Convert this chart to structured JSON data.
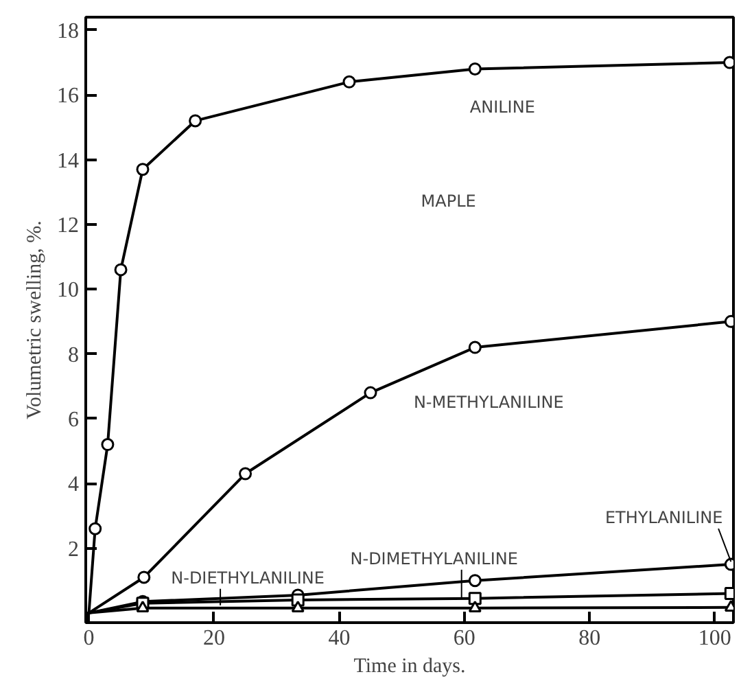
{
  "chart_data": {
    "type": "line",
    "xlabel": "Time in days.",
    "ylabel": "Volumetric swelling, %.",
    "annotations": [
      "MAPLE"
    ],
    "xlim": [
      -0.5,
      103
    ],
    "ylim": [
      -0.3,
      18.4
    ],
    "xticks": [
      0,
      20,
      40,
      60,
      80,
      100
    ],
    "yticks": [
      2,
      4,
      6,
      8,
      10,
      12,
      14,
      16,
      18
    ],
    "grid": false,
    "series": [
      {
        "name": "ANILINE",
        "color": "#000000",
        "marker": "circle",
        "x": [
          0,
          1,
          3,
          5.1,
          8.6,
          17,
          41.6,
          61.7,
          102.4
        ],
        "values": [
          0,
          2.6,
          5.2,
          10.6,
          13.7,
          15.2,
          16.4,
          16.8,
          17.0
        ]
      },
      {
        "name": "N-METHYLANILINE",
        "color": "#000000",
        "marker": "circle",
        "x": [
          0,
          8.8,
          25,
          45,
          61.7,
          102.6
        ],
        "values": [
          0,
          1.1,
          4.3,
          6.8,
          8.2,
          9.0
        ]
      },
      {
        "name": "ETHYLANILINE",
        "color": "#000000",
        "marker": "circle",
        "x": [
          0,
          8.6,
          33.4,
          61.7,
          102.6
        ],
        "values": [
          0,
          0.35,
          0.55,
          1.0,
          1.5
        ]
      },
      {
        "name": "N-DIMETHYLANILINE",
        "color": "#000000",
        "marker": "square",
        "x": [
          0,
          8.6,
          33.4,
          61.7,
          102.6
        ],
        "values": [
          0,
          0.3,
          0.4,
          0.45,
          0.6
        ]
      },
      {
        "name": "N-DIETHYLANILINE",
        "color": "#000000",
        "marker": "triangle",
        "x": [
          0,
          8.6,
          33.4,
          61.7,
          102.6
        ],
        "values": [
          0,
          0.15,
          0.15,
          0.15,
          0.17
        ]
      }
    ]
  }
}
